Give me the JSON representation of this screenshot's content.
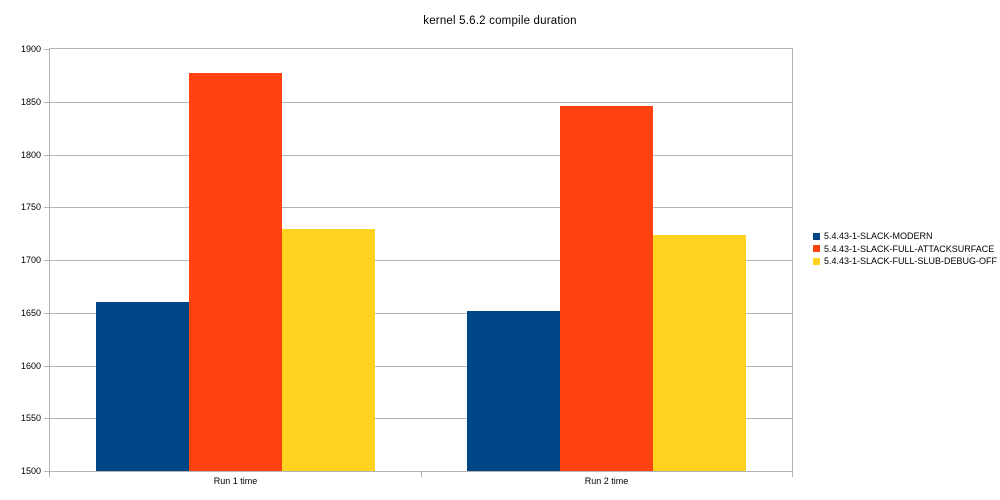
{
  "chart_data": {
    "type": "bar",
    "title": "kernel 5.6.2 compile duration",
    "categories": [
      "Run 1 time",
      "Run 2 time"
    ],
    "series": [
      {
        "name": "5.4.43-1-SLACK-MODERN",
        "color": "#004586",
        "values": [
          1660,
          1652
        ]
      },
      {
        "name": "5.4.43-1-SLACK-FULL-ATTACKSURFACE",
        "color": "#FF420E",
        "values": [
          1877,
          1846
        ]
      },
      {
        "name": "5.4.43-1-SLACK-FULL-SLUB-DEBUG-OFF",
        "color": "#FFD320",
        "values": [
          1729,
          1724
        ]
      }
    ],
    "ylim": [
      1500,
      1900
    ],
    "ytick_step": 50,
    "ytick_labels": [
      "1500",
      "1550",
      "1600",
      "1650",
      "1700",
      "1750",
      "1800",
      "1850",
      "1900"
    ],
    "grid": "horizontal",
    "legend_position": "right",
    "colors": {
      "axis_and_grid": "#B3B3B3",
      "text": "#000000",
      "background": "#FFFFFF"
    }
  }
}
